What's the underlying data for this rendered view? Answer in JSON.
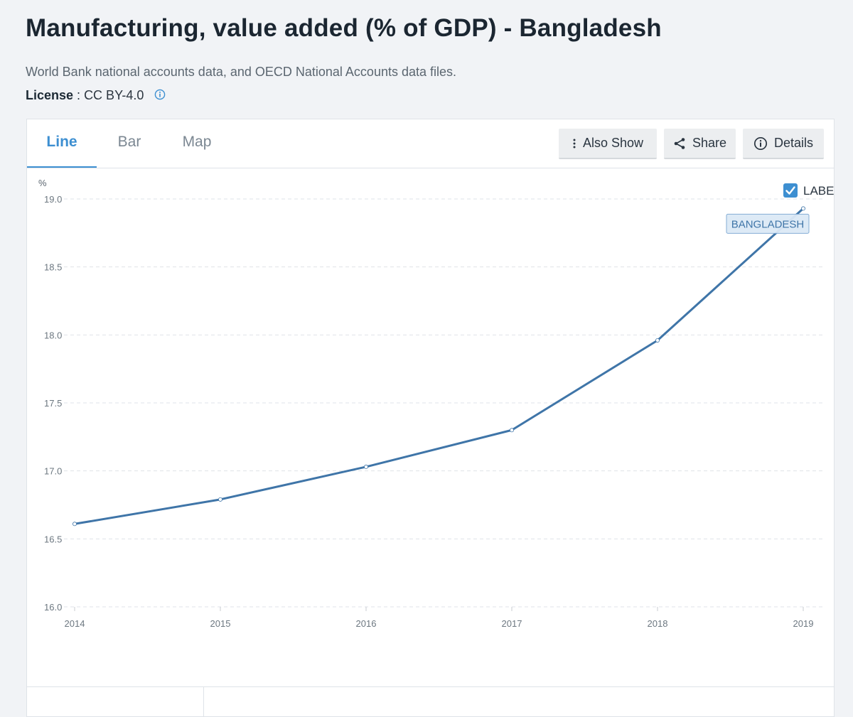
{
  "header": {
    "title": "Manufacturing, value added (% of GDP) - Bangladesh",
    "source": "World Bank national accounts data, and OECD National Accounts data files.",
    "license_key": "License",
    "license_sep": " : ",
    "license_value": "CC BY-4.0"
  },
  "tabs": [
    {
      "label": "Line",
      "active": true
    },
    {
      "label": "Bar",
      "active": false
    },
    {
      "label": "Map",
      "active": false
    }
  ],
  "toolbar": {
    "also_show": "Also Show",
    "share": "Share",
    "details": "Details"
  },
  "label_toggle": {
    "text": "LABEL",
    "checked": true
  },
  "colors": {
    "accent": "#3d8fd1",
    "line": "#3f75a8",
    "grid": "#dfe3e8",
    "series_label_bg": "#dce9f6"
  },
  "chart_data": {
    "type": "line",
    "ylabel": "%",
    "x": [
      "2014",
      "2015",
      "2016",
      "2017",
      "2018",
      "2019"
    ],
    "yticks": [
      "16.0",
      "16.5",
      "17.0",
      "17.5",
      "18.0",
      "18.5",
      "19.0"
    ],
    "ylim": [
      16.0,
      19.0
    ],
    "grid": true,
    "series": [
      {
        "name": "BANGLADESH",
        "values": [
          16.61,
          16.79,
          17.03,
          17.3,
          17.96,
          18.93
        ]
      }
    ]
  }
}
